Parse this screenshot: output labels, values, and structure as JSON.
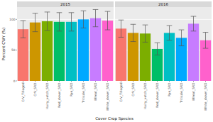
{
  "chart_data": [
    {
      "type": "bar",
      "title": "2015",
      "y_label": "Percent CWY (%)",
      "x_label": "Cover Crop Species",
      "categories": [
        "CrV_Tillaged",
        "CrV_SRD",
        "Hairy_vetch_SRD",
        "Red_clover_SRD",
        "Rye_SRD",
        "Triticale_SRD",
        "Wheat_SRD",
        "White_clover_SRD"
      ],
      "values": [
        84,
        95,
        97,
        96,
        96,
        100,
        102,
        98
      ],
      "errors": [
        14,
        15,
        15,
        15,
        15,
        14,
        14,
        15
      ],
      "colors": [
        "#F8766D",
        "#CD9600",
        "#7CAE00",
        "#00BE67",
        "#00BFC4",
        "#00A9FF",
        "#C77CFF",
        "#FF61CC"
      ],
      "ylim": [
        0,
        120
      ],
      "yticks": [
        0,
        50,
        100
      ],
      "grid": true
    },
    {
      "type": "bar",
      "title": "2016",
      "categories": [
        "CrV_Tillaged",
        "CrV_SRD",
        "Hairy_vetch_SRD",
        "Red_clover_SRD",
        "Rye_SRD",
        "Triticale_SRD",
        "Wheat_SRD",
        "White_clover_SRD"
      ],
      "values": [
        85,
        78,
        77,
        52,
        78,
        70,
        93,
        66
      ],
      "errors": [
        14,
        14,
        14,
        10,
        12,
        13,
        12,
        13
      ],
      "colors": [
        "#F8766D",
        "#CD9600",
        "#7CAE00",
        "#00BE67",
        "#00BFC4",
        "#00A9FF",
        "#C77CFF",
        "#FF61CC"
      ],
      "ylim": [
        0,
        120
      ],
      "yticks": [
        0,
        50,
        100
      ],
      "grid": true
    }
  ]
}
